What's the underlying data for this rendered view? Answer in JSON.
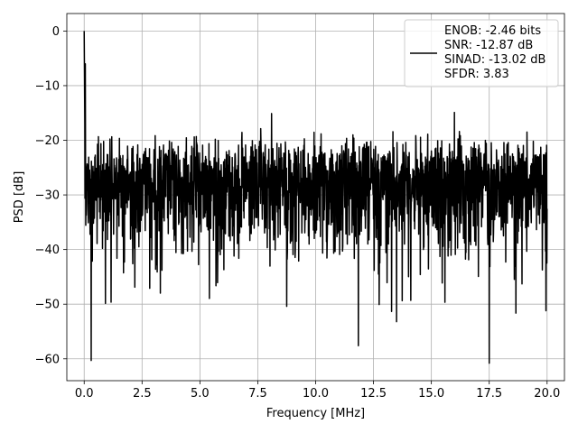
{
  "chart_data": {
    "type": "line",
    "xlabel": "Frequency [MHz]",
    "ylabel": "PSD [dB]",
    "xlim": [
      -0.75,
      20.75
    ],
    "ylim": [
      -64,
      3.2
    ],
    "grid": true,
    "xticks": [
      0.0,
      2.5,
      5.0,
      7.5,
      10.0,
      12.5,
      15.0,
      17.5,
      20.0
    ],
    "xtick_labels": [
      "0.0",
      "2.5",
      "5.0",
      "7.5",
      "10.0",
      "12.5",
      "15.0",
      "17.5",
      "20.0"
    ],
    "yticks": [
      0,
      -10,
      -20,
      -30,
      -40,
      -50,
      -60
    ],
    "ytick_labels": [
      "0",
      "−10",
      "−20",
      "−30",
      "−40",
      "−50",
      "−60"
    ],
    "legend_placement": "upper-right",
    "series": [
      {
        "name": "ENOB: -2.46 bits\nSNR: -12.87 dB\nSINAD: -13.02 dB\nSFDR: 3.83",
        "legend_lines": [
          "ENOB: -2.46 bits",
          "SNR: -12.87 dB",
          "SINAD: -13.02 dB",
          "SFDR: 3.83"
        ],
        "color": "#000000",
        "x_range": [
          0,
          20
        ],
        "point_count": 2049,
        "notable_points": [
          {
            "x": 0.0,
            "y": 0.0
          },
          {
            "x": 0.05,
            "y": -6.0
          },
          {
            "x": 0.12,
            "y": -25.0
          },
          {
            "x": 0.3,
            "y": -60.3
          },
          {
            "x": 11.85,
            "y": -57.6
          },
          {
            "x": 13.5,
            "y": -53.2
          },
          {
            "x": 17.5,
            "y": -60.8
          },
          {
            "x": 8.1,
            "y": -15.1
          },
          {
            "x": 16.0,
            "y": -14.9
          },
          {
            "x": 19.95,
            "y": -51.2
          }
        ]
      }
    ]
  }
}
